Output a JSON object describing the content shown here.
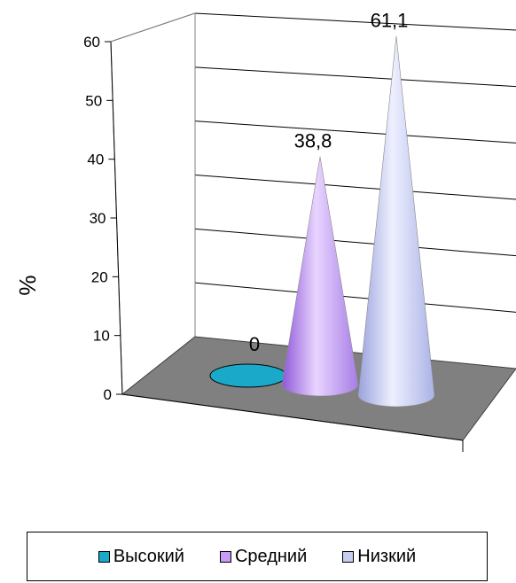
{
  "chart_data": {
    "type": "bar",
    "title": "",
    "ylabel": "%",
    "xlabel": "",
    "ylim": [
      0,
      60
    ],
    "yticks": [
      0,
      10,
      20,
      30,
      40,
      50,
      60
    ],
    "categories": [
      "Высокий",
      "Средний",
      "Низкий"
    ],
    "values": [
      0,
      38.8,
      61.1
    ],
    "data_labels": [
      "0",
      "38,8",
      "61,1"
    ],
    "colors": [
      "#1aa9c9",
      "#c79cf2",
      "#c6cdf0"
    ],
    "shape": "cone",
    "grid": true,
    "legend_position": "bottom"
  }
}
